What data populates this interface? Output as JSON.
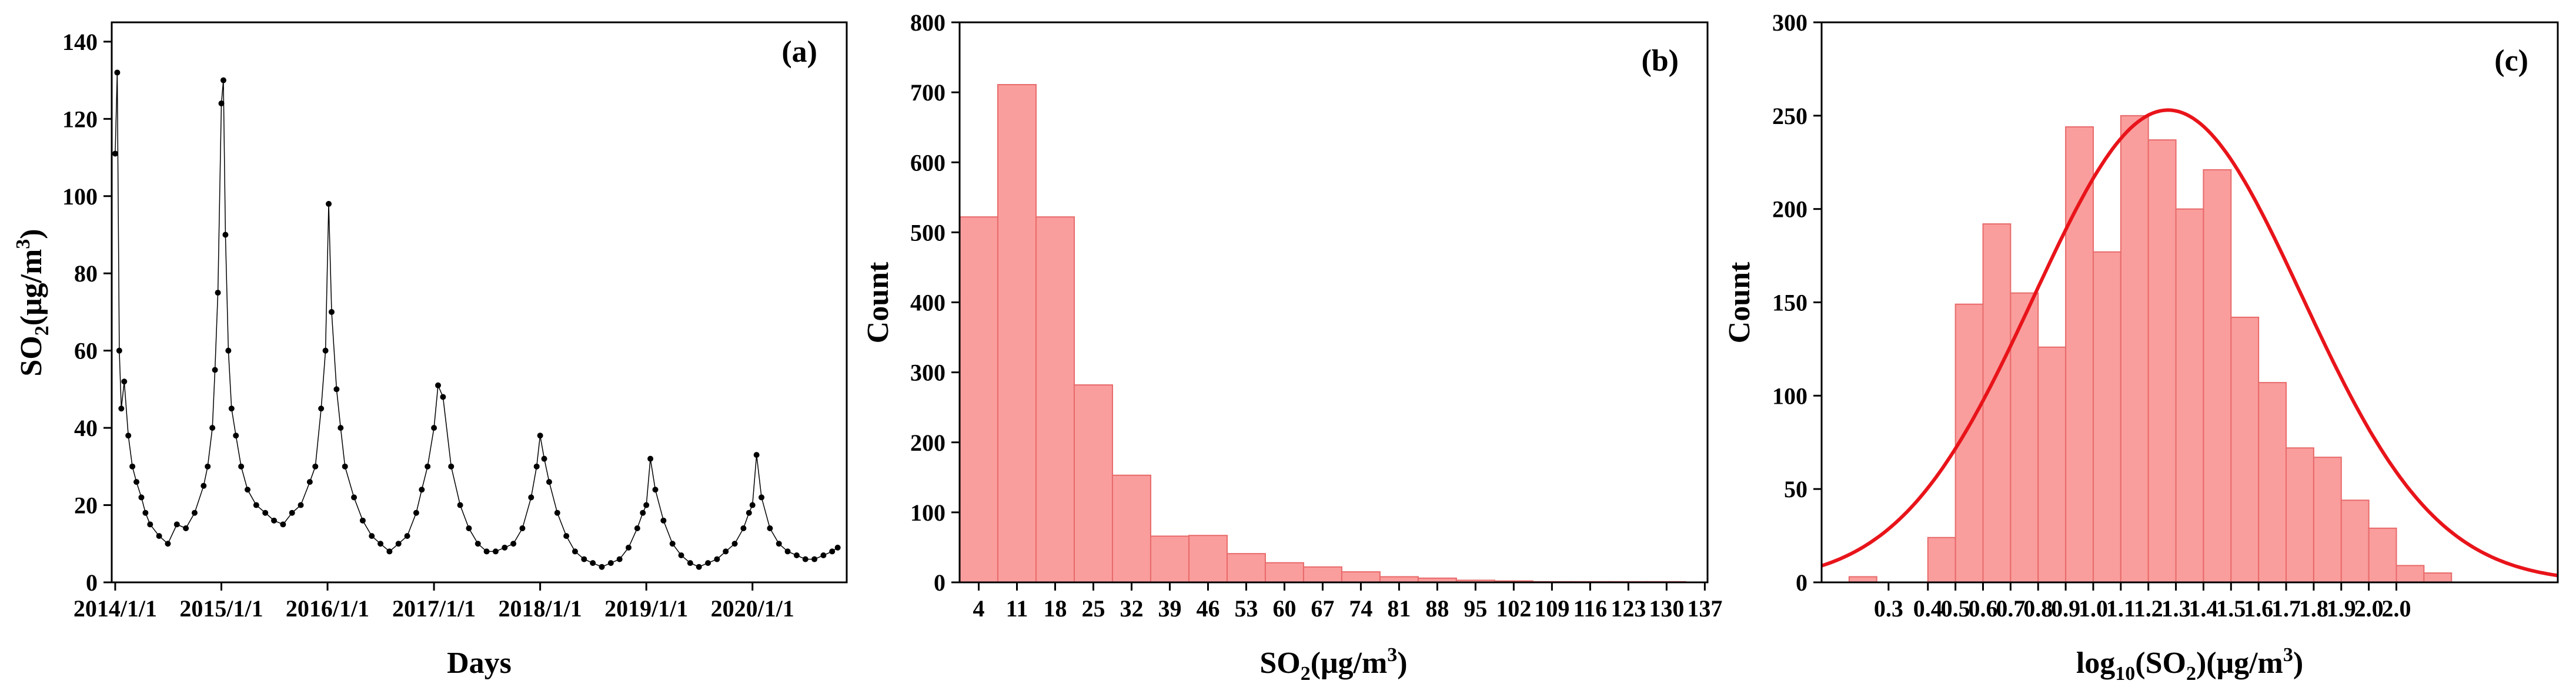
{
  "chart_data": [
    {
      "type": "line",
      "panel_label": "(a)",
      "xlabel": "Days",
      "ylabel_main": "SO",
      "ylabel_sub": "2",
      "ylabel_rest": "(μg/m",
      "ylabel_sup": "3",
      "ylabel_end": ")",
      "xlim": [
        "2013-12-20",
        "2020-11-20"
      ],
      "ylim": [
        0,
        145
      ],
      "yticks": [
        0,
        20,
        40,
        60,
        80,
        100,
        120,
        140
      ],
      "xticks": [
        "2014/1/1",
        "2015/1/1",
        "2016/1/1",
        "2017/1/1",
        "2018/1/1",
        "2019/1/1",
        "2020/1/1"
      ],
      "xtick_dates": [
        "2014-01-01",
        "2015-01-01",
        "2016-01-01",
        "2017-01-01",
        "2018-01-01",
        "2019-01-01",
        "2020-01-01"
      ],
      "series": [
        {
          "x": [
            "2014-01-01",
            "2014-01-08",
            "2014-01-15",
            "2014-01-22",
            "2014-02-01",
            "2014-02-15",
            "2014-03-01",
            "2014-03-15",
            "2014-04-01",
            "2014-04-15",
            "2014-05-01",
            "2014-06-01",
            "2014-07-01",
            "2014-08-01",
            "2014-09-01",
            "2014-10-01",
            "2014-11-01",
            "2014-11-15",
            "2014-12-01",
            "2014-12-10",
            "2014-12-20",
            "2015-01-01",
            "2015-01-08",
            "2015-01-15",
            "2015-01-25",
            "2015-02-05",
            "2015-02-20",
            "2015-03-10",
            "2015-04-01",
            "2015-05-01",
            "2015-06-01",
            "2015-07-01",
            "2015-08-01",
            "2015-09-01",
            "2015-10-01",
            "2015-11-01",
            "2015-11-20",
            "2015-12-10",
            "2015-12-25",
            "2016-01-05",
            "2016-01-15",
            "2016-02-01",
            "2016-02-15",
            "2016-03-01",
            "2016-04-01",
            "2016-05-01",
            "2016-06-01",
            "2016-07-01",
            "2016-08-01",
            "2016-09-01",
            "2016-10-01",
            "2016-11-01",
            "2016-11-20",
            "2016-12-10",
            "2017-01-01",
            "2017-01-15",
            "2017-02-01",
            "2017-03-01",
            "2017-04-01",
            "2017-05-01",
            "2017-06-01",
            "2017-07-01",
            "2017-08-01",
            "2017-09-01",
            "2017-10-01",
            "2017-11-01",
            "2017-12-01",
            "2017-12-20",
            "2018-01-01",
            "2018-01-15",
            "2018-02-01",
            "2018-03-01",
            "2018-04-01",
            "2018-05-01",
            "2018-06-01",
            "2018-07-01",
            "2018-08-01",
            "2018-09-01",
            "2018-10-01",
            "2018-11-01",
            "2018-12-01",
            "2018-12-20",
            "2019-01-01",
            "2019-01-15",
            "2019-02-01",
            "2019-03-01",
            "2019-04-01",
            "2019-05-01",
            "2019-06-01",
            "2019-07-01",
            "2019-08-01",
            "2019-09-01",
            "2019-10-01",
            "2019-11-01",
            "2019-12-01",
            "2019-12-20",
            "2020-01-01",
            "2020-01-15",
            "2020-02-01",
            "2020-03-01",
            "2020-04-01",
            "2020-05-01",
            "2020-06-01",
            "2020-07-01",
            "2020-08-01",
            "2020-09-01",
            "2020-10-01",
            "2020-10-20"
          ],
          "y": [
            111,
            132,
            60,
            45,
            52,
            38,
            30,
            26,
            22,
            18,
            15,
            12,
            10,
            15,
            14,
            18,
            25,
            30,
            40,
            55,
            75,
            124,
            130,
            90,
            60,
            45,
            38,
            30,
            24,
            20,
            18,
            16,
            15,
            18,
            20,
            26,
            30,
            45,
            60,
            98,
            70,
            50,
            40,
            30,
            22,
            16,
            12,
            10,
            8,
            10,
            12,
            18,
            24,
            30,
            40,
            51,
            48,
            30,
            20,
            14,
            10,
            8,
            8,
            9,
            10,
            14,
            22,
            30,
            38,
            32,
            26,
            18,
            12,
            8,
            6,
            5,
            4,
            5,
            6,
            9,
            14,
            18,
            20,
            32,
            24,
            16,
            10,
            7,
            5,
            4,
            5,
            6,
            8,
            10,
            14,
            18,
            20,
            33,
            22,
            14,
            10,
            8,
            7,
            6,
            6,
            7,
            8,
            9
          ]
        }
      ]
    },
    {
      "type": "bar",
      "panel_label": "(b)",
      "xlabel_main": "SO",
      "xlabel_sub": "2",
      "xlabel_rest": "(μg/m",
      "xlabel_sup": "3",
      "xlabel_end": ")",
      "ylabel": "Count",
      "ylim": [
        0,
        800
      ],
      "yticks": [
        0,
        100,
        200,
        300,
        400,
        500,
        600,
        700,
        800
      ],
      "bin_start": 0.5,
      "bin_width": 7,
      "xlim": [
        0.5,
        137.5
      ],
      "xticks": [
        "4",
        "11",
        "18",
        "25",
        "32",
        "39",
        "46",
        "53",
        "60",
        "67",
        "74",
        "81",
        "88",
        "95",
        "102",
        "109",
        "116",
        "123",
        "130",
        "137"
      ],
      "xtick_values": [
        4,
        11,
        18,
        25,
        32,
        39,
        46,
        53,
        60,
        67,
        74,
        81,
        88,
        95,
        102,
        109,
        116,
        123,
        130,
        137
      ],
      "values": [
        522,
        711,
        522,
        282,
        153,
        66,
        67,
        41,
        28,
        22,
        15,
        8,
        6,
        3,
        2,
        1,
        1,
        1,
        1
      ]
    },
    {
      "type": "bar",
      "panel_label": "(c)",
      "xlabel_pre": "log",
      "xlabel_sub1": "10",
      "xlabel_mid": "(SO",
      "xlabel_sub2": "2",
      "xlabel_rest": ")(μg/m",
      "xlabel_sup": "3",
      "xlabel_end": ")",
      "ylabel": "Count",
      "ylim": [
        0,
        300
      ],
      "yticks": [
        0,
        50,
        100,
        150,
        200,
        250,
        300
      ],
      "bin_starts": [
        0.25,
        0.35,
        0.45,
        0.52,
        0.59,
        0.66,
        0.73,
        0.8,
        0.87,
        0.94,
        1.01,
        1.08,
        1.15,
        1.22,
        1.29,
        1.36,
        1.43,
        1.5,
        1.57,
        1.64,
        1.71,
        1.78,
        1.85
      ],
      "bin_width": 0.07,
      "xlim": [
        0.18,
        2.05
      ],
      "values": [
        3,
        0,
        24,
        149,
        192,
        155,
        126,
        244,
        177,
        250,
        237,
        200,
        221,
        142,
        107,
        72,
        67,
        44,
        29,
        9,
        5,
        0,
        0
      ],
      "xticks": [
        "0.3",
        "0.4",
        "0.5",
        "0.6",
        "0.7",
        "0.8",
        "0.9",
        "1.0",
        "1.1",
        "1.2",
        "1.3",
        "1.4",
        "1.5",
        "1.6",
        "1.7",
        "1.8",
        "1.9",
        "2.0",
        "2.0"
      ],
      "fit": {
        "type": "normal",
        "mean": 1.06,
        "sd": 0.34,
        "peak": 253
      }
    }
  ]
}
